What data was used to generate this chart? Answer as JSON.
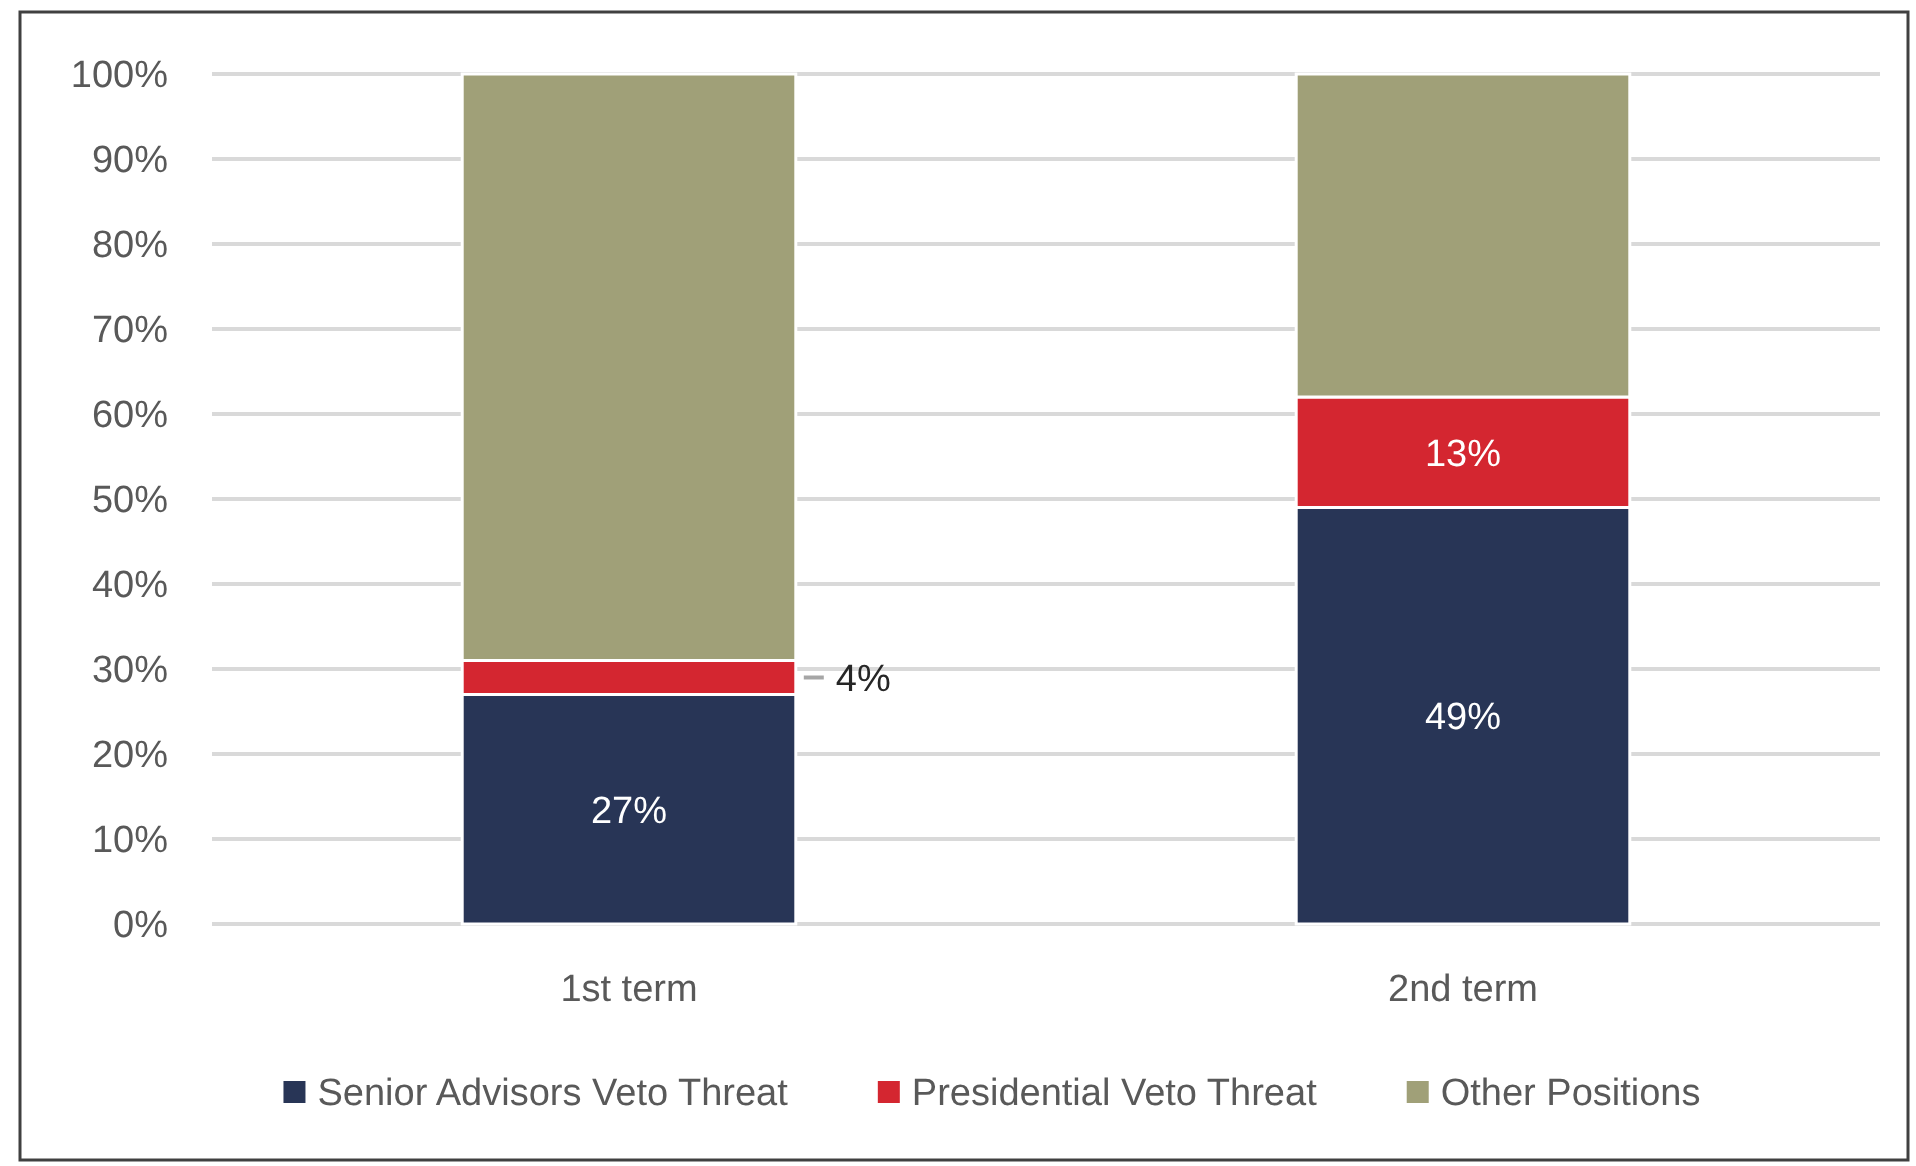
{
  "chart_data": {
    "type": "bar",
    "stacked": true,
    "categories": [
      "1st term",
      "2nd term"
    ],
    "series": [
      {
        "name": "Senior Advisors Veto Threat",
        "color": "#283556",
        "values": [
          27,
          49
        ],
        "value_labels": [
          "27%",
          "49%"
        ]
      },
      {
        "name": "Presidential Veto Threat",
        "color": "#d42630",
        "values": [
          4,
          13
        ],
        "value_labels": [
          "4%",
          "13%"
        ]
      },
      {
        "name": "Other Positions",
        "color": "#a0a078",
        "values": [
          69,
          38
        ]
      }
    ],
    "ylim": [
      0,
      100
    ],
    "yticks": [
      {
        "value": 0,
        "label": "0%"
      },
      {
        "value": 10,
        "label": "10%"
      },
      {
        "value": 20,
        "label": "20%"
      },
      {
        "value": 30,
        "label": "30%"
      },
      {
        "value": 40,
        "label": "40%"
      },
      {
        "value": 50,
        "label": "50%"
      },
      {
        "value": 60,
        "label": "60%"
      },
      {
        "value": 70,
        "label": "70%"
      },
      {
        "value": 80,
        "label": "80%"
      },
      {
        "value": 90,
        "label": "90%"
      },
      {
        "value": 100,
        "label": "100%"
      }
    ],
    "grid": "y",
    "legend": "bottom"
  }
}
